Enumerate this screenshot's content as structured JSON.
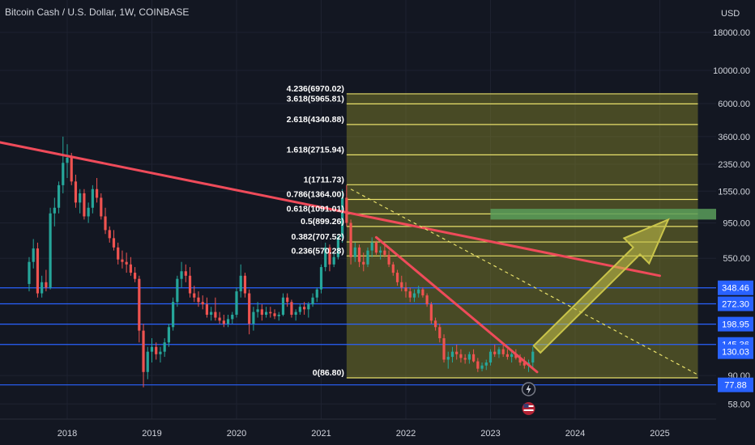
{
  "title": "Bitcoin Cash / U.S. Dollar, 1W, COINBASE",
  "currency": "USD",
  "colors": {
    "background": "#131722",
    "grid": "#1e2230",
    "up": "#26a69a",
    "down": "#ef5350",
    "fib_line": "#e8e06a",
    "fib_fill": "#8a8a2a",
    "trendline": "#ef4b5a",
    "support_line": "#2962ff",
    "zone": "#5b9e5b",
    "arrow": "#c9c44a"
  },
  "chart_data": {
    "type": "candlestick",
    "scale": "log",
    "ylim": [
      50,
      30000
    ],
    "x_ticks": [
      "2018",
      "2019",
      "2020",
      "2021",
      "2022",
      "2023",
      "2024",
      "2025"
    ],
    "y_ticks": [
      "18000.00",
      "10000.00",
      "6000.00",
      "3600.00",
      "2350.00",
      "1550.00",
      "950.00",
      "550.00",
      "90.00",
      "58.00"
    ],
    "price_labels": [
      {
        "label": "348.46",
        "value": 348.46
      },
      {
        "label": "272.30",
        "value": 272.3
      },
      {
        "label": "198.95",
        "value": 198.95
      },
      {
        "label": "145.36",
        "value": 145.36
      },
      {
        "label": "130.03",
        "value": 130.03
      },
      {
        "label": "77.88",
        "value": 77.88
      }
    ],
    "fib_levels": [
      {
        "label": "4.236(6970.02)",
        "value": 6970.02
      },
      {
        "label": "3.618(5965.81)",
        "value": 5965.81
      },
      {
        "label": "2.618(4340.88)",
        "value": 4340.88
      },
      {
        "label": "1.618(2715.94)",
        "value": 2715.94
      },
      {
        "label": "1(1711.73)",
        "value": 1711.73
      },
      {
        "label": "0.786(1364.00)",
        "value": 1364.0
      },
      {
        "label": "0.618(1091.01)",
        "value": 1091.01
      },
      {
        "label": "0.5(899.26)",
        "value": 899.26
      },
      {
        "label": "0.382(707.52)",
        "value": 707.52
      },
      {
        "label": "0.236(570.28)",
        "value": 570.28
      },
      {
        "label": "0(86.80)",
        "value": 86.8
      }
    ],
    "fib_x_range": [
      2021.3,
      2025.45
    ],
    "support_levels": [
      348.46,
      272.3,
      198.95,
      145.36,
      77.88
    ],
    "resistance_zone": {
      "low": 1000,
      "high": 1180,
      "x_start": 2023.0,
      "x_end": 2025.6
    },
    "trendlines": [
      {
        "x1": 2017.2,
        "y1": 3300,
        "x2": 2025.0,
        "y2": 420
      },
      {
        "x1": 2021.65,
        "y1": 760,
        "x2": 2023.55,
        "y2": 95
      }
    ],
    "dashed_line": {
      "x1": 2021.35,
      "y1": 1600,
      "x2": 2025.45,
      "y2": 91
    },
    "arrow": {
      "from": [
        2023.55,
        135
      ],
      "to": [
        2025.1,
        1000
      ]
    },
    "candles": [
      [
        2017.55,
        370,
        560,
        330,
        520
      ],
      [
        2017.6,
        520,
        740,
        470,
        640
      ],
      [
        2017.65,
        640,
        700,
        300,
        320
      ],
      [
        2017.7,
        320,
        420,
        300,
        380
      ],
      [
        2017.75,
        380,
        460,
        330,
        350
      ],
      [
        2017.8,
        350,
        1200,
        340,
        1100
      ],
      [
        2017.85,
        1100,
        1400,
        900,
        1200
      ],
      [
        2017.9,
        1200,
        1800,
        1100,
        1700
      ],
      [
        2017.95,
        1700,
        3600,
        1500,
        2400
      ],
      [
        2018.0,
        2400,
        3200,
        1900,
        2600
      ],
      [
        2018.05,
        2600,
        2800,
        1700,
        1800
      ],
      [
        2018.1,
        1800,
        2000,
        1200,
        1300
      ],
      [
        2018.15,
        1300,
        1600,
        1100,
        1500
      ],
      [
        2018.2,
        1500,
        1600,
        1000,
        1050
      ],
      [
        2018.25,
        1050,
        1300,
        950,
        1200
      ],
      [
        2018.3,
        1200,
        1700,
        1100,
        1600
      ],
      [
        2018.35,
        1600,
        1900,
        1300,
        1400
      ],
      [
        2018.4,
        1400,
        1500,
        1000,
        1050
      ],
      [
        2018.45,
        1050,
        1200,
        800,
        850
      ],
      [
        2018.5,
        850,
        900,
        700,
        750
      ],
      [
        2018.55,
        750,
        850,
        620,
        650
      ],
      [
        2018.6,
        650,
        700,
        500,
        540
      ],
      [
        2018.65,
        540,
        620,
        470,
        520
      ],
      [
        2018.7,
        520,
        600,
        440,
        500
      ],
      [
        2018.75,
        500,
        560,
        420,
        440
      ],
      [
        2018.8,
        440,
        480,
        380,
        400
      ],
      [
        2018.85,
        400,
        420,
        150,
        180
      ],
      [
        2018.9,
        180,
        200,
        75,
        95
      ],
      [
        2018.95,
        95,
        140,
        85,
        130
      ],
      [
        2019.0,
        130,
        160,
        110,
        140
      ],
      [
        2019.05,
        140,
        150,
        115,
        125
      ],
      [
        2019.1,
        125,
        140,
        110,
        130
      ],
      [
        2019.15,
        130,
        160,
        120,
        150
      ],
      [
        2019.2,
        150,
        200,
        140,
        190
      ],
      [
        2019.25,
        190,
        300,
        180,
        280
      ],
      [
        2019.3,
        280,
        420,
        260,
        400
      ],
      [
        2019.35,
        400,
        520,
        350,
        450
      ],
      [
        2019.4,
        450,
        500,
        380,
        420
      ],
      [
        2019.45,
        420,
        480,
        300,
        320
      ],
      [
        2019.5,
        320,
        360,
        280,
        300
      ],
      [
        2019.55,
        300,
        330,
        260,
        280
      ],
      [
        2019.6,
        280,
        310,
        250,
        270
      ],
      [
        2019.65,
        270,
        300,
        220,
        230
      ],
      [
        2019.7,
        230,
        260,
        210,
        240
      ],
      [
        2019.75,
        240,
        300,
        210,
        220
      ],
      [
        2019.8,
        220,
        240,
        200,
        210
      ],
      [
        2019.85,
        210,
        230,
        190,
        200
      ],
      [
        2019.9,
        200,
        230,
        190,
        215
      ],
      [
        2019.95,
        215,
        240,
        200,
        230
      ],
      [
        2020.0,
        230,
        350,
        220,
        330
      ],
      [
        2020.05,
        330,
        500,
        300,
        420
      ],
      [
        2020.1,
        420,
        440,
        300,
        320
      ],
      [
        2020.15,
        320,
        340,
        170,
        200
      ],
      [
        2020.2,
        200,
        260,
        180,
        240
      ],
      [
        2020.25,
        240,
        280,
        220,
        250
      ],
      [
        2020.3,
        250,
        270,
        210,
        230
      ],
      [
        2020.35,
        230,
        260,
        220,
        240
      ],
      [
        2020.4,
        240,
        260,
        220,
        235
      ],
      [
        2020.45,
        235,
        250,
        215,
        225
      ],
      [
        2020.5,
        225,
        240,
        210,
        230
      ],
      [
        2020.55,
        230,
        320,
        225,
        300
      ],
      [
        2020.6,
        300,
        320,
        260,
        280
      ],
      [
        2020.65,
        280,
        290,
        220,
        230
      ],
      [
        2020.7,
        230,
        250,
        210,
        240
      ],
      [
        2020.75,
        240,
        270,
        230,
        260
      ],
      [
        2020.8,
        260,
        280,
        230,
        250
      ],
      [
        2020.85,
        250,
        280,
        220,
        270
      ],
      [
        2020.9,
        270,
        320,
        260,
        300
      ],
      [
        2020.95,
        300,
        350,
        280,
        340
      ],
      [
        2021.0,
        340,
        500,
        320,
        480
      ],
      [
        2021.05,
        480,
        700,
        450,
        650
      ],
      [
        2021.1,
        650,
        680,
        450,
        500
      ],
      [
        2021.15,
        500,
        600,
        480,
        560
      ],
      [
        2021.2,
        560,
        800,
        540,
        760
      ],
      [
        2021.25,
        760,
        1600,
        700,
        1400
      ],
      [
        2021.3,
        1400,
        1700,
        900,
        950
      ],
      [
        2021.35,
        950,
        1000,
        500,
        560
      ],
      [
        2021.4,
        560,
        700,
        520,
        650
      ],
      [
        2021.45,
        650,
        680,
        480,
        520
      ],
      [
        2021.5,
        520,
        600,
        450,
        500
      ],
      [
        2021.55,
        500,
        650,
        480,
        620
      ],
      [
        2021.6,
        620,
        760,
        560,
        700
      ],
      [
        2021.65,
        700,
        720,
        580,
        600
      ],
      [
        2021.7,
        600,
        660,
        540,
        620
      ],
      [
        2021.75,
        620,
        680,
        560,
        580
      ],
      [
        2021.8,
        580,
        620,
        480,
        500
      ],
      [
        2021.85,
        500,
        520,
        420,
        440
      ],
      [
        2021.9,
        440,
        460,
        360,
        380
      ],
      [
        2021.95,
        380,
        420,
        330,
        350
      ],
      [
        2022.0,
        350,
        380,
        300,
        330
      ],
      [
        2022.05,
        330,
        350,
        280,
        300
      ],
      [
        2022.1,
        300,
        340,
        280,
        320
      ],
      [
        2022.15,
        320,
        360,
        300,
        340
      ],
      [
        2022.2,
        340,
        350,
        300,
        310
      ],
      [
        2022.25,
        310,
        320,
        260,
        270
      ],
      [
        2022.3,
        270,
        280,
        200,
        210
      ],
      [
        2022.35,
        210,
        220,
        180,
        190
      ],
      [
        2022.4,
        190,
        200,
        150,
        160
      ],
      [
        2022.45,
        160,
        170,
        110,
        115
      ],
      [
        2022.5,
        115,
        130,
        100,
        120
      ],
      [
        2022.55,
        120,
        140,
        110,
        130
      ],
      [
        2022.6,
        130,
        145,
        115,
        125
      ],
      [
        2022.65,
        125,
        135,
        110,
        118
      ],
      [
        2022.7,
        118,
        125,
        108,
        115
      ],
      [
        2022.75,
        115,
        130,
        108,
        125
      ],
      [
        2022.8,
        125,
        135,
        110,
        112
      ],
      [
        2022.85,
        112,
        118,
        95,
        100
      ],
      [
        2022.9,
        100,
        110,
        96,
        105
      ],
      [
        2022.95,
        105,
        115,
        98,
        110
      ],
      [
        2023.0,
        110,
        135,
        105,
        130
      ],
      [
        2023.05,
        130,
        145,
        120,
        125
      ],
      [
        2023.1,
        125,
        140,
        118,
        135
      ],
      [
        2023.15,
        135,
        145,
        120,
        125
      ],
      [
        2023.2,
        125,
        135,
        115,
        120
      ],
      [
        2023.25,
        120,
        130,
        110,
        125
      ],
      [
        2023.3,
        125,
        135,
        115,
        118
      ],
      [
        2023.35,
        118,
        125,
        105,
        110
      ],
      [
        2023.4,
        110,
        120,
        100,
        105
      ],
      [
        2023.45,
        105,
        115,
        95,
        110
      ],
      [
        2023.5,
        110,
        140,
        100,
        130
      ]
    ]
  }
}
